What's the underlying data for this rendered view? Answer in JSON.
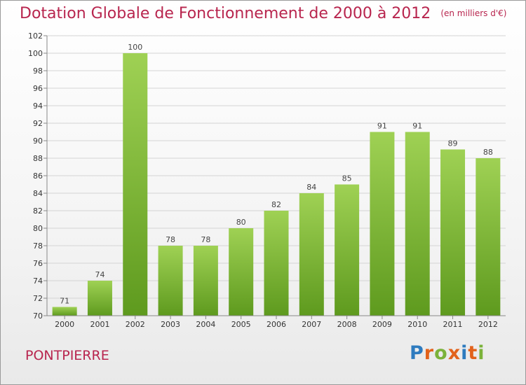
{
  "title": "Dotation Globale de Fonctionnement de 2000 à 2012",
  "subtitle": "(en milliers d'€)",
  "commune": "PONTPIERRE",
  "logo": {
    "letters": [
      "P",
      "r",
      "o",
      "x",
      "i",
      "t",
      "i"
    ],
    "colors": [
      "#2e7bbf",
      "#e2621b",
      "#7bb23a",
      "#e2621b",
      "#2e7bbf",
      "#e2621b",
      "#7bb23a"
    ]
  },
  "colors": {
    "title": "#b8254e",
    "bar_top": "#9fd154",
    "bar_bottom": "#5e9a1e"
  },
  "chart_data": {
    "type": "bar",
    "categories": [
      "2000",
      "2001",
      "2002",
      "2003",
      "2004",
      "2005",
      "2006",
      "2007",
      "2008",
      "2009",
      "2010",
      "2011",
      "2012"
    ],
    "values": [
      71,
      74,
      100,
      78,
      78,
      80,
      82,
      84,
      85,
      91,
      91,
      89,
      88
    ],
    "yticks": [
      70,
      72,
      74,
      76,
      78,
      80,
      82,
      84,
      86,
      88,
      90,
      92,
      94,
      96,
      98,
      100,
      102
    ],
    "ylim": [
      70,
      102
    ],
    "grid": true,
    "title": "Dotation Globale de Fonctionnement de 2000 à 2012",
    "subtitle": "(en milliers d'€)"
  }
}
